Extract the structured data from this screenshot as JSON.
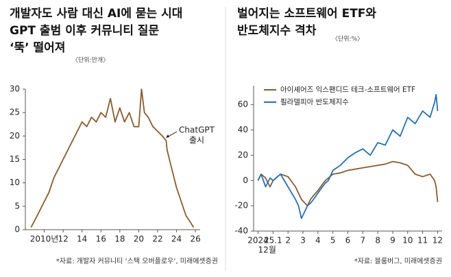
{
  "chart_data": [
    {
      "type": "line",
      "title": [
        "개발자도 사람 대신 AI에 묻는 시대",
        "GPT 출범 이후 커뮤니티 질문",
        "‘뚝’ 떨어져"
      ],
      "subtitle": "〈단위:만개〉",
      "annotation": [
        "ChatGPT",
        "출시"
      ],
      "source": "*자료: 개발자 커뮤니티 ‘스택 오버플로우’, 미래에셋증권",
      "x": [
        2008.6,
        2009,
        2009.5,
        2010,
        2010.5,
        2011,
        2011.5,
        2012,
        2012.5,
        2013,
        2013.5,
        2014,
        2014.5,
        2015,
        2015.5,
        2016,
        2016.5,
        2017,
        2017.5,
        2018,
        2018.5,
        2019,
        2019.5,
        2020,
        2020.3,
        2020.6,
        2021,
        2021.5,
        2022,
        2022.5,
        2022.9,
        2023,
        2023.5,
        2024,
        2024.5,
        2025,
        2025.5,
        2025.8
      ],
      "series": [
        {
          "name": null,
          "color": "#8b5a2b",
          "values": [
            0.5,
            2,
            4,
            6,
            8,
            11,
            13,
            15,
            17,
            19,
            21,
            23,
            22,
            24,
            23,
            25,
            24,
            28,
            23,
            26,
            23,
            25,
            22,
            22,
            30,
            25,
            24,
            22,
            21,
            20,
            19,
            17,
            13,
            9,
            6,
            3,
            1.5,
            0.5
          ]
        }
      ],
      "xlim": [
        2008,
        2026.5
      ],
      "xticks": [
        {
          "value": 2010,
          "label": "2010년"
        },
        2012,
        2014,
        2016,
        2018,
        2020,
        2022,
        2024,
        2026
      ],
      "xtick_labels_short": true,
      "ylim": [
        0,
        30
      ],
      "yticks": [
        0,
        5,
        10,
        15,
        20,
        25,
        30
      ]
    },
    {
      "type": "line",
      "title": [
        "벌어지는 소프트웨어 ETF와",
        "반도체지수 격차"
      ],
      "subtitle": "〈단위:%〉",
      "source": "*자료: 블룸버그, 미래에셋증권",
      "x": [
        0,
        0.2,
        0.5,
        0.8,
        1,
        1.5,
        2,
        2.5,
        2.7,
        2.9,
        3.3,
        3.5,
        3.7,
        4,
        4.3,
        4.5,
        4.7,
        5,
        5.5,
        6,
        6.5,
        7,
        7.5,
        8,
        8.5,
        9,
        9.5,
        10,
        10.5,
        11,
        11.5,
        11.8,
        11.9,
        12
      ],
      "series": [
        {
          "name": "아이셰어즈 익스팬디드 테크-소프트웨어 ETF",
          "color": "#8b5a2b",
          "values": [
            0,
            5,
            2,
            -5,
            0,
            5,
            3,
            -5,
            -10,
            -15,
            -20,
            -15,
            -12,
            -8,
            -3,
            0,
            2,
            5,
            6,
            8,
            9,
            10,
            11,
            12,
            13,
            15,
            14,
            12,
            5,
            3,
            5,
            0,
            -5,
            -17
          ]
        },
        {
          "name": "필라델피아 반도체지수",
          "color": "#1f6fc0",
          "values": [
            0,
            5,
            -5,
            2,
            0,
            5,
            -5,
            -15,
            -20,
            -30,
            -20,
            -18,
            -15,
            -10,
            -5,
            -2,
            0,
            8,
            12,
            18,
            22,
            25,
            20,
            30,
            28,
            40,
            35,
            50,
            45,
            55,
            50,
            62,
            68,
            55
          ]
        }
      ],
      "xlim": [
        -0.3,
        12.3
      ],
      "xticks": [
        {
          "value": 0,
          "label": [
            "2024",
            "12월"
          ]
        },
        {
          "value": 1,
          "label": "25.1"
        },
        2,
        3,
        4,
        5,
        6,
        7,
        8,
        9,
        10,
        11,
        12
      ],
      "ylim": [
        -40,
        75
      ],
      "yticks": [
        -40,
        -20,
        0,
        20,
        40,
        60
      ]
    }
  ]
}
